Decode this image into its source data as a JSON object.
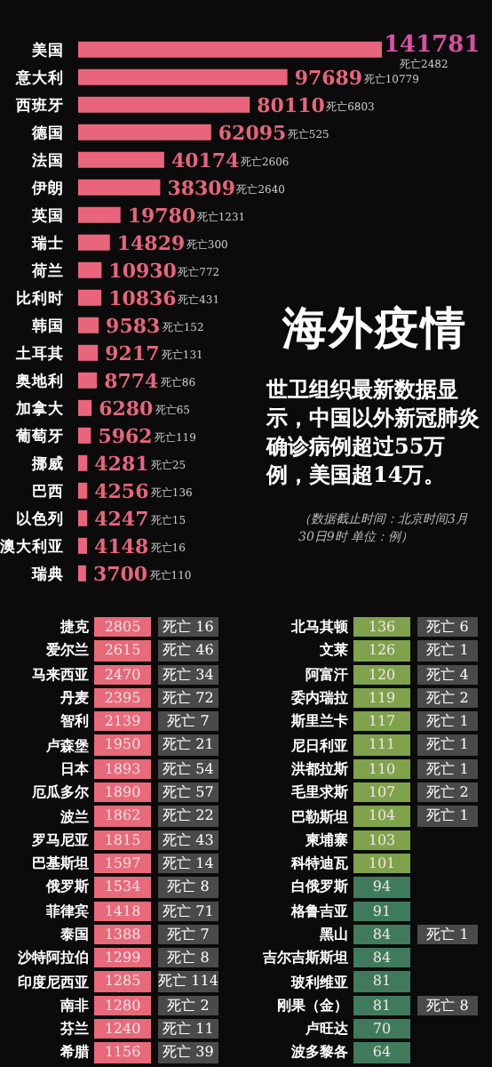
{
  "chart_data": [
    {
      "type": "bar",
      "orientation": "horizontal",
      "categories": [
        "美国",
        "意大利",
        "西班牙",
        "德国",
        "法国",
        "伊朗",
        "英国",
        "瑞士",
        "荷兰",
        "比利时",
        "韩国",
        "土耳其",
        "奥地利",
        "加拿大",
        "葡萄牙",
        "挪威",
        "巴西",
        "以色列",
        "澳大利亚",
        "瑞典"
      ],
      "values": [
        141781,
        97689,
        80110,
        62095,
        40174,
        38309,
        19780,
        14829,
        10930,
        10836,
        9583,
        9217,
        8774,
        6280,
        5962,
        4281,
        4256,
        4247,
        4148,
        3700
      ],
      "color": "#e8657c",
      "tick_labels": "y",
      "data_labels": true,
      "annotations": [
        "死亡2482",
        "死亡10779",
        "死亡6803",
        "死亡525",
        "死亡2606",
        "死亡2640",
        "死亡1231",
        "死亡300",
        "死亡772",
        "死亡431",
        "死亡152",
        "死亡131",
        "死亡86",
        "死亡65",
        "死亡119",
        "死亡25",
        "死亡136",
        "死亡15",
        "死亡16",
        "死亡110"
      ]
    },
    {
      "type": "other",
      "title": "海外疫情",
      "subtitle": "世卫组织最新数据显示，中国以外新冠肺炎确诊病例超过55万例，美国超14万。",
      "annotations": [
        "（数据截止时间：北京时间3月30日9时 单位：例）"
      ]
    },
    {
      "type": "other",
      "data_labels": true,
      "categories": [
        "捷克",
        "爱尔兰",
        "马来西亚",
        "丹麦",
        "智利",
        "卢森堡",
        "日本",
        "厄瓜多尔",
        "波兰",
        "罗马尼亚",
        "巴基斯坦",
        "俄罗斯",
        "菲律宾",
        "泰国",
        "沙特阿拉伯",
        "印度尼西亚",
        "南非",
        "芬兰",
        "希腊"
      ],
      "series": [
        {
          "color": "#e8697a",
          "values": [
            2805,
            2615,
            2470,
            2395,
            2139,
            1950,
            1893,
            1890,
            1862,
            1815,
            1597,
            1534,
            1418,
            1388,
            1299,
            1285,
            1280,
            1240,
            1156
          ]
        },
        {
          "color": "#4a4a4a",
          "values": [
            16,
            46,
            34,
            72,
            7,
            21,
            54,
            57,
            22,
            43,
            14,
            8,
            71,
            7,
            8,
            114,
            2,
            11,
            39
          ],
          "value_labels": [
            "死亡 16",
            "死亡 46",
            "死亡 34",
            "死亡 72",
            "死亡 7",
            "死亡 21",
            "死亡 54",
            "死亡 57",
            "死亡 22",
            "死亡 43",
            "死亡 14",
            "死亡 8",
            "死亡 71",
            "死亡 7",
            "死亡 8",
            "死亡 114",
            "死亡 2",
            "死亡 11",
            "死亡 39"
          ]
        }
      ]
    },
    {
      "type": "other",
      "data_labels": true,
      "categories": [
        "北马其顿",
        "文莱",
        "阿富汗",
        "委内瑞拉",
        "斯里兰卡",
        "尼日利亚",
        "洪都拉斯",
        "毛里求斯",
        "巴勒斯坦",
        "柬埔寨",
        "科特迪瓦",
        "白俄罗斯",
        "格鲁吉亚",
        "黑山",
        "吉尔吉斯斯坦",
        "玻利维亚",
        "刚果（金）",
        "卢旺达",
        "波多黎各"
      ],
      "series": [
        {
          "colors": [
            "#7fa24c",
            "#7fa24c",
            "#7fa24c",
            "#7fa24c",
            "#7fa24c",
            "#7fa24c",
            "#7fa24c",
            "#7fa24c",
            "#7fa24c",
            "#7fa24c",
            "#7fa24c",
            "#3f7a5c",
            "#3f7a5c",
            "#3f7a5c",
            "#3f7a5c",
            "#3f7a5c",
            "#3f7a5c",
            "#3f7a5c",
            "#3f7a5c"
          ],
          "values": [
            136,
            126,
            120,
            119,
            117,
            111,
            110,
            107,
            104,
            103,
            101,
            94,
            91,
            84,
            84,
            81,
            81,
            70,
            64
          ]
        },
        {
          "color": "#4a4a4a",
          "values": [
            6,
            1,
            4,
            2,
            1,
            1,
            1,
            2,
            1,
            null,
            null,
            null,
            null,
            1,
            null,
            null,
            8,
            null,
            null
          ],
          "value_labels": [
            "死亡 6",
            "死亡 1",
            "死亡 4",
            "死亡 2",
            "死亡 1",
            "死亡 1",
            "死亡 1",
            "死亡 2",
            "死亡 1",
            null,
            null,
            null,
            null,
            "死亡 1",
            null,
            null,
            "死亡 8",
            null,
            null
          ]
        }
      ]
    }
  ]
}
